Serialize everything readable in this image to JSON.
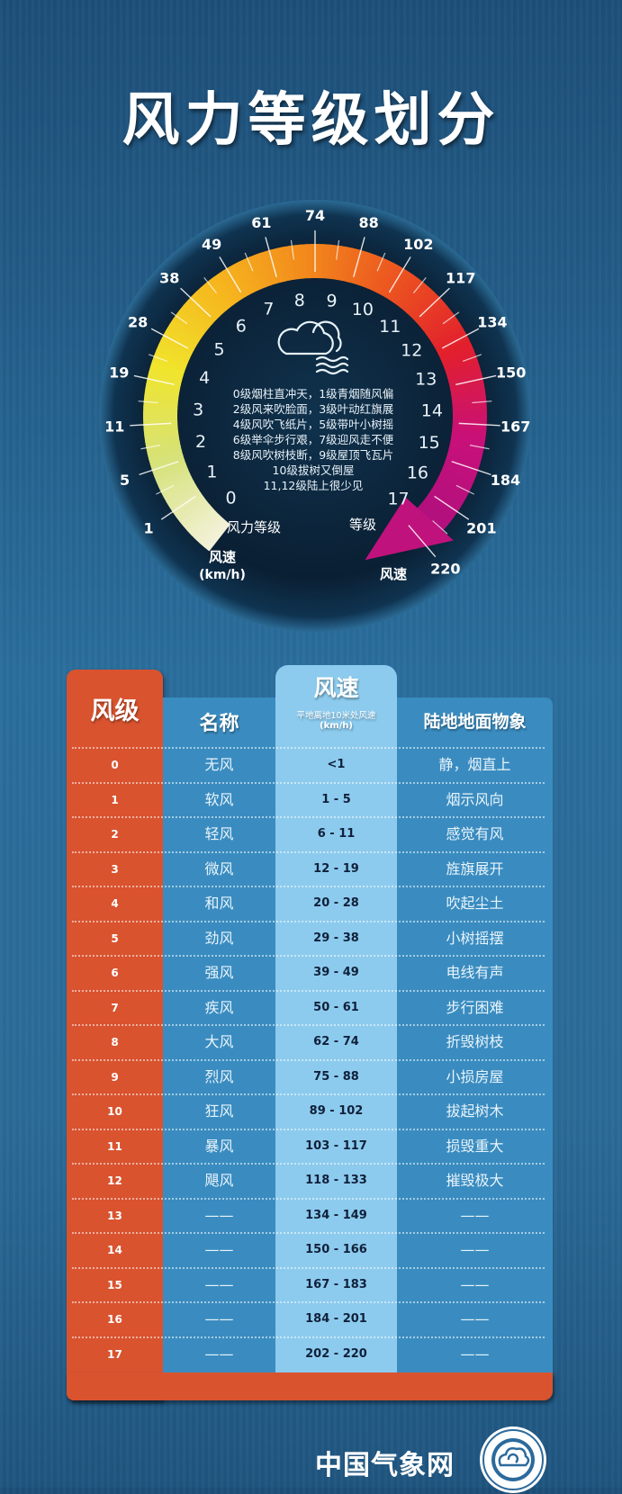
{
  "title": "风力等级划分",
  "gauge": {
    "levels": [
      "0",
      "1",
      "2",
      "3",
      "4",
      "5",
      "6",
      "7",
      "8",
      "9",
      "10",
      "11",
      "12",
      "13",
      "14",
      "15",
      "16",
      "17"
    ],
    "speeds": [
      "1",
      "5",
      "11",
      "19",
      "28",
      "38",
      "49",
      "61",
      "74",
      "88",
      "102",
      "117",
      "134",
      "150",
      "167",
      "184",
      "201",
      "220"
    ],
    "label_level_left": "风力等级",
    "label_speed_left": "风速",
    "label_speed_unit": "(km/h)",
    "label_level_right": "等级",
    "label_speed_right": "风速",
    "icon": "cloud-wind-icon",
    "description": [
      "0级烟柱直冲天，1级青烟随风偏",
      "2级风来吹脸面，3级叶动红旗展",
      "4级风吹飞纸片，5级带叶小树摇",
      "6级举伞步行艰，7级迎风走不便",
      "8级风吹树枝断，9级屋顶飞瓦片",
      "10级拔树又倒屋",
      "11,12级陆上很少见"
    ],
    "colors": [
      "#f3f1d8",
      "#d6e27a",
      "#f0e42c",
      "#f6b81e",
      "#f28a1c",
      "#ec5420",
      "#e2202c",
      "#c8107a",
      "#b0107e"
    ]
  },
  "table": {
    "headers": {
      "level": "风级",
      "name": "名称",
      "speed": "风速",
      "speed_sub": "平地离地10米处风速",
      "speed_unit": "(km/h)",
      "phenomenon": "陆地地面物象"
    },
    "rows": [
      {
        "level": "0",
        "name": "无风",
        "speed": "<1",
        "phenomenon": "静，烟直上"
      },
      {
        "level": "1",
        "name": "软风",
        "speed": "1 - 5",
        "phenomenon": "烟示风向"
      },
      {
        "level": "2",
        "name": "轻风",
        "speed": "6 - 11",
        "phenomenon": "感觉有风"
      },
      {
        "level": "3",
        "name": "微风",
        "speed": "12 - 19",
        "phenomenon": "旌旗展开"
      },
      {
        "level": "4",
        "name": "和风",
        "speed": "20 - 28",
        "phenomenon": "吹起尘土"
      },
      {
        "level": "5",
        "name": "劲风",
        "speed": "29 - 38",
        "phenomenon": "小树摇摆"
      },
      {
        "level": "6",
        "name": "强风",
        "speed": "39 - 49",
        "phenomenon": "电线有声"
      },
      {
        "level": "7",
        "name": "疾风",
        "speed": "50 - 61",
        "phenomenon": "步行困难"
      },
      {
        "level": "8",
        "name": "大风",
        "speed": "62 - 74",
        "phenomenon": "折毁树枝"
      },
      {
        "level": "9",
        "name": "烈风",
        "speed": "75 - 88",
        "phenomenon": "小损房屋"
      },
      {
        "level": "10",
        "name": "狂风",
        "speed": "89 - 102",
        "phenomenon": "拔起树木"
      },
      {
        "level": "11",
        "name": "暴风",
        "speed": "103 - 117",
        "phenomenon": "损毁重大"
      },
      {
        "level": "12",
        "name": "飓风",
        "speed": "118 - 133",
        "phenomenon": "摧毁极大"
      },
      {
        "level": "13",
        "name": "——",
        "speed": "134 - 149",
        "phenomenon": "——"
      },
      {
        "level": "14",
        "name": "——",
        "speed": "150 - 166",
        "phenomenon": "——"
      },
      {
        "level": "15",
        "name": "——",
        "speed": "167 - 183",
        "phenomenon": "——"
      },
      {
        "level": "16",
        "name": "——",
        "speed": "184 - 201",
        "phenomenon": "——"
      },
      {
        "level": "17",
        "name": "——",
        "speed": "202 - 220",
        "phenomenon": "——"
      }
    ]
  },
  "footer": {
    "site_name": "中国气象网",
    "logo": "cma-logo"
  }
}
